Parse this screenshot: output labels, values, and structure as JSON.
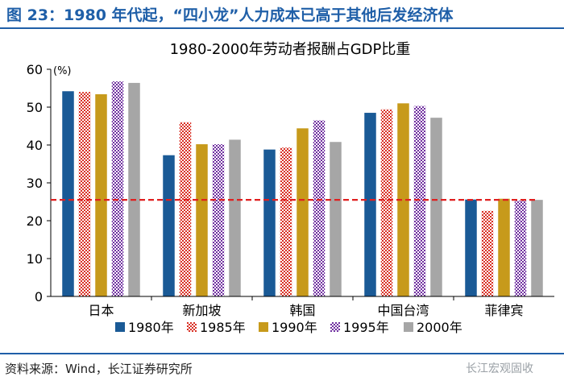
{
  "figure": {
    "label": "图 23：1980 年代起，“四小龙”人力成本已高于其他后发经济体",
    "source": "资料来源：Wind，长江证券研究所",
    "watermark": "长江宏观固收"
  },
  "chart_data": {
    "type": "bar",
    "title": "1980-2000年劳动者报酬占GDP比重",
    "ylabel": "(%)",
    "xlabel": "",
    "ylim": [
      0,
      60
    ],
    "yticks": [
      0,
      10,
      20,
      30,
      40,
      50,
      60
    ],
    "categories": [
      "日本",
      "新加坡",
      "韩国",
      "中国台湾",
      "菲律宾"
    ],
    "series": [
      {
        "name": "1980年",
        "color": "#1a5a96",
        "pattern": "solid",
        "values": [
          54.2,
          37.3,
          38.8,
          48.5,
          25.6
        ]
      },
      {
        "name": "1985年",
        "color": "#d93025",
        "pattern": "checker",
        "values": [
          54.0,
          46.0,
          39.3,
          49.4,
          22.6
        ]
      },
      {
        "name": "1990年",
        "color": "#c79a1b",
        "pattern": "solid",
        "values": [
          53.4,
          40.2,
          44.4,
          51.0,
          25.8
        ]
      },
      {
        "name": "1995年",
        "color": "#7030a0",
        "pattern": "checker",
        "values": [
          56.8,
          40.2,
          46.5,
          50.3,
          25.3
        ]
      },
      {
        "name": "2000年",
        "color": "#a6a6a6",
        "pattern": "solid",
        "values": [
          56.4,
          41.4,
          40.8,
          47.2,
          25.5
        ]
      }
    ],
    "reference_line": {
      "value": 25.5,
      "color": "#e02020",
      "style": "dashed"
    },
    "legend_position": "bottom"
  }
}
